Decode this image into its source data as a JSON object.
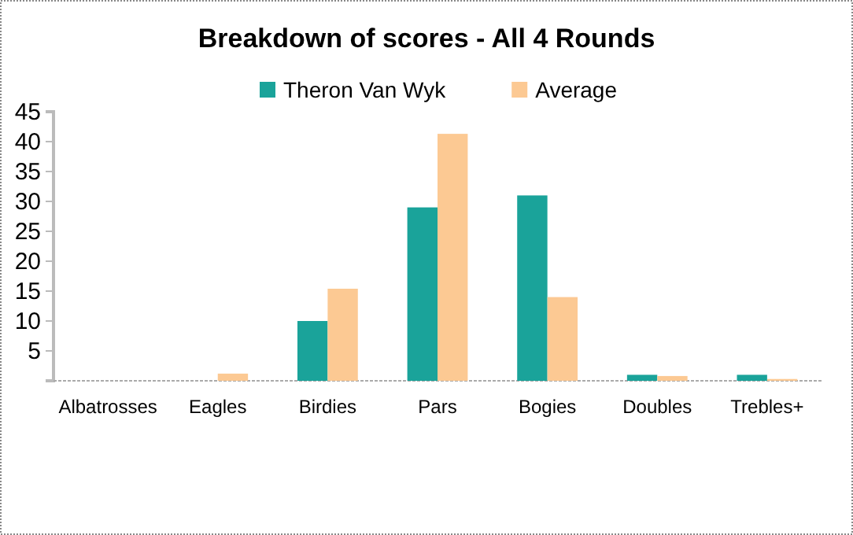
{
  "chart_data": {
    "type": "bar",
    "title": "Breakdown of scores - All 4 Rounds",
    "categories": [
      "Albatrosses",
      "Eagles",
      "Birdies",
      "Pars",
      "Bogies",
      "Doubles",
      "Trebles+"
    ],
    "series": [
      {
        "name": "Theron Van Wyk",
        "color": "#1aa39a",
        "values": [
          0,
          0,
          10,
          29,
          31,
          1,
          1
        ]
      },
      {
        "name": "Average",
        "color": "#fcc993",
        "values": [
          0,
          1.2,
          15.4,
          41.3,
          14,
          0.8,
          0.3
        ]
      }
    ],
    "ylim": [
      0,
      45
    ],
    "yticks": [
      {
        "value": 0,
        "label": null
      },
      5,
      10,
      15,
      20,
      25,
      30,
      35,
      40,
      45
    ],
    "grid": false,
    "legend": "top"
  }
}
